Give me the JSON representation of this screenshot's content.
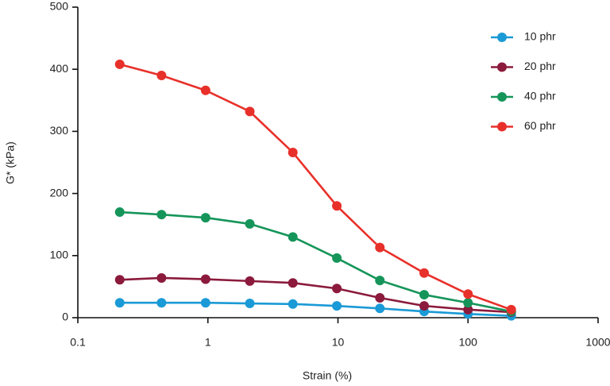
{
  "chart_data": {
    "type": "line",
    "x_label": "Strain (%)",
    "y_label": "G* (kPa)",
    "x": [
      0.21,
      0.44,
      0.96,
      2.1,
      4.5,
      9.8,
      21,
      46,
      100,
      215
    ],
    "series": [
      {
        "name": "10 phr",
        "color": "#1a9ad6",
        "values": [
          24,
          24,
          24,
          23,
          22,
          19,
          15,
          10,
          6,
          3
        ]
      },
      {
        "name": "20 phr",
        "color": "#8b1a3c",
        "values": [
          61,
          64,
          62,
          59,
          56,
          47,
          32,
          19,
          13,
          9
        ]
      },
      {
        "name": "40 phr",
        "color": "#16955a",
        "values": [
          170,
          166,
          161,
          151,
          130,
          96,
          60,
          37,
          24,
          10
        ]
      },
      {
        "name": "60 phr",
        "color": "#e8302a",
        "values": [
          408,
          390,
          366,
          332,
          266,
          180,
          113,
          72,
          38,
          13
        ]
      }
    ],
    "xscale": "log",
    "xlim": [
      0.1,
      1000
    ],
    "xticks": [
      0.1,
      1,
      10,
      100,
      1000
    ],
    "ylim": [
      0,
      500
    ],
    "yticks": [
      0,
      100,
      200,
      300,
      400,
      500
    ],
    "grid": false,
    "legend": "upper right"
  }
}
